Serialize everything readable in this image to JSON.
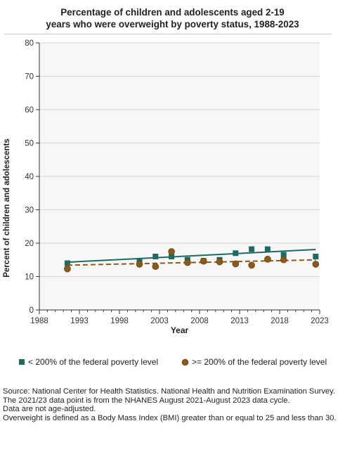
{
  "title_line1": "Percentage of children and adolescents aged 2-19",
  "title_line2": "years who were overweight by poverty status, 1988-2023",
  "chart_data": {
    "type": "scatter",
    "xlabel": "Year",
    "ylabel": "Percent of children and adolescents",
    "xlim": [
      1988,
      2023
    ],
    "ylim": [
      0,
      80
    ],
    "xticks": [
      1988,
      1993,
      1998,
      2003,
      2008,
      2013,
      2018,
      2023
    ],
    "yticks": [
      0,
      10,
      20,
      30,
      40,
      50,
      60,
      70,
      80
    ],
    "grid": "horizontal",
    "legend_position": "bottom",
    "series": [
      {
        "name": "< 200% of the federal poverty level",
        "marker": "square",
        "color": "#1f6b63",
        "x": [
          1991.5,
          2000.5,
          2002.5,
          2004.5,
          2006.5,
          2008.5,
          2010.5,
          2012.5,
          2014.5,
          2016.5,
          2018.5,
          2022.5
        ],
        "y": [
          14.0,
          14.5,
          16.0,
          16.0,
          15.0,
          14.7,
          15.0,
          17.0,
          18.2,
          18.2,
          16.5,
          16.0
        ],
        "trend": {
          "style": "solid",
          "x": [
            1991.5,
            2022.5
          ],
          "y": [
            14.3,
            18.1
          ]
        }
      },
      {
        "name": ">= 200% of the federal poverty level",
        "marker": "circle",
        "color": "#8b5a1b",
        "x": [
          1991.5,
          2000.5,
          2002.5,
          2004.5,
          2006.5,
          2008.5,
          2010.5,
          2012.5,
          2014.5,
          2016.5,
          2018.5,
          2022.5
        ],
        "y": [
          12.3,
          13.7,
          13.0,
          17.5,
          14.2,
          14.6,
          14.4,
          13.8,
          13.4,
          15.2,
          15.0,
          13.7
        ],
        "trend": {
          "style": "dashed",
          "x": [
            1991.5,
            2022.5
          ],
          "y": [
            13.4,
            15.0
          ]
        }
      }
    ]
  },
  "source_lines": [
    "Source: National Center for Health Statistics. National Health and Nutrition Examination Survey.",
    "The 2021/23 data point is from the NHANES August 2021-August 2023 data cycle.",
    "Data are not age-adjusted.",
    "Overweight is defined as a Body Mass Index (BMI) greater than or equal to 25 and less than 30."
  ]
}
